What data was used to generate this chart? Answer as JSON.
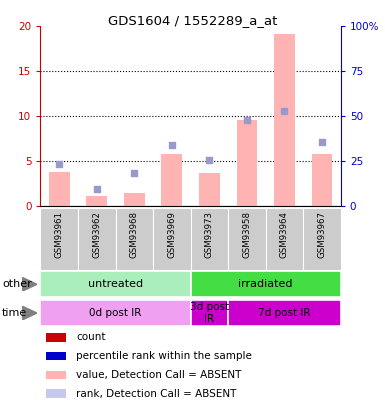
{
  "title": "GDS1604 / 1552289_a_at",
  "samples": [
    "GSM93961",
    "GSM93962",
    "GSM93968",
    "GSM93969",
    "GSM93973",
    "GSM93958",
    "GSM93964",
    "GSM93967"
  ],
  "bar_values": [
    3.8,
    1.1,
    1.5,
    5.8,
    3.7,
    9.6,
    19.2,
    5.8
  ],
  "rank_dots": [
    4.7,
    1.9,
    3.7,
    6.8,
    5.1,
    9.6,
    10.6,
    7.1
  ],
  "ylim_left": [
    0,
    20
  ],
  "ylim_right": [
    0,
    100
  ],
  "yticks_left": [
    0,
    5,
    10,
    15,
    20
  ],
  "yticks_right": [
    0,
    25,
    50,
    75,
    100
  ],
  "ytick_labels_right": [
    "0",
    "25",
    "50",
    "75",
    "100%"
  ],
  "bar_color": "#ffb3b3",
  "dot_color": "#9999cc",
  "left_axis_color": "#cc0000",
  "right_axis_color": "#0000cc",
  "sample_bg": "#cccccc",
  "group_other": [
    {
      "label": "untreated",
      "start": 0,
      "end": 4,
      "color": "#aaeebb"
    },
    {
      "label": "irradiated",
      "start": 4,
      "end": 8,
      "color": "#44dd44"
    }
  ],
  "group_time": [
    {
      "label": "0d post IR",
      "start": 0,
      "end": 4,
      "color": "#f0a0f0"
    },
    {
      "label": "3d post\nIR",
      "start": 4,
      "end": 5,
      "color": "#cc00cc"
    },
    {
      "label": "7d post IR",
      "start": 5,
      "end": 8,
      "color": "#cc00cc"
    }
  ],
  "legend_colors": [
    "#cc0000",
    "#0000cc",
    "#ffb3b3",
    "#c8c8ee"
  ],
  "legend_labels": [
    "count",
    "percentile rank within the sample",
    "value, Detection Call = ABSENT",
    "rank, Detection Call = ABSENT"
  ]
}
